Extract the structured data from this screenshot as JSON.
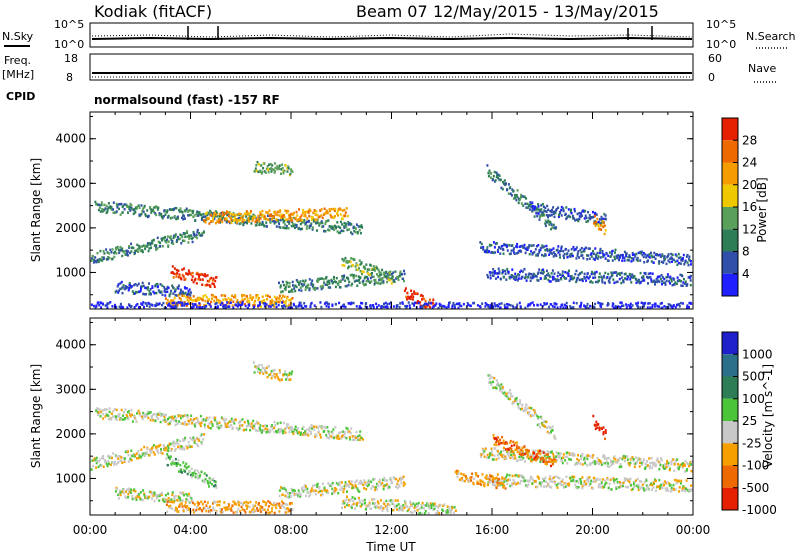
{
  "header": {
    "station": "Kodiak (fitACF)",
    "beam": "Beam 07",
    "dates": "12/May/2015 - 13/May/2015"
  },
  "panels": {
    "nsky": {
      "left_label": "N.Sky",
      "right_label": "N.Search",
      "left_ticks": [
        "10^5",
        "10^0"
      ],
      "right_ticks": [
        "10^5",
        "10^0"
      ]
    },
    "freq": {
      "left_label_1": "Freq.",
      "left_label_2": "[MHz]",
      "right_label": "Nave",
      "left_ticks": [
        "18",
        "8"
      ],
      "right_ticks": [
        "60",
        "0"
      ]
    },
    "cpid": {
      "label": "CPID",
      "text": "normalsound (fast) -157 RF"
    }
  },
  "chart_data": [
    {
      "type": "heatmap",
      "name": "power",
      "ylabel": "Slant Range [km]",
      "xlabel": "",
      "yticks": [
        "1000",
        "2000",
        "3000",
        "4000"
      ],
      "ylim": [
        180,
        4600
      ],
      "xlim": [
        0,
        24
      ],
      "colorbar": {
        "label": "Power [dB]",
        "ticks": [
          "4",
          "8",
          "12",
          "16",
          "20",
          "24",
          "28"
        ],
        "colors": [
          "#1f1fff",
          "#2f4fa8",
          "#2d7d56",
          "#5aa05a",
          "#f0c800",
          "#f59c00",
          "#ee6a00",
          "#e52000"
        ]
      },
      "features": [
        {
          "t0": 0.2,
          "t1": 10.8,
          "r0": 2500,
          "r1": 2000,
          "v": 2
        },
        {
          "t0": 4.5,
          "t1": 10.2,
          "r0": 2250,
          "r1": 2350,
          "v": 5
        },
        {
          "t0": 0.0,
          "t1": 4.5,
          "r0": 1350,
          "r1": 1900,
          "v": 2
        },
        {
          "t0": 3.2,
          "t1": 5.0,
          "r0": 1050,
          "r1": 800,
          "v": 7
        },
        {
          "t0": 1.0,
          "t1": 4.0,
          "r0": 700,
          "r1": 600,
          "v": 1
        },
        {
          "t0": 7.5,
          "t1": 12.5,
          "r0": 700,
          "r1": 950,
          "v": 2
        },
        {
          "t0": 10.0,
          "t1": 12.0,
          "r0": 1300,
          "r1": 900,
          "v": 3
        },
        {
          "t0": 12.5,
          "t1": 13.8,
          "r0": 550,
          "r1": 250,
          "v": 7
        },
        {
          "t0": 3.0,
          "t1": 8.0,
          "r0": 400,
          "r1": 380,
          "v": 5
        },
        {
          "t0": 15.8,
          "t1": 24.0,
          "r0": 1000,
          "r1": 850,
          "v": 1
        },
        {
          "t0": 15.5,
          "t1": 24.0,
          "r0": 1600,
          "r1": 1300,
          "v": 1
        },
        {
          "t0": 15.8,
          "t1": 18.5,
          "r0": 3300,
          "r1": 2000,
          "v": 2
        },
        {
          "t0": 17.5,
          "t1": 20.5,
          "r0": 2500,
          "r1": 2200,
          "v": 1
        },
        {
          "t0": 6.5,
          "t1": 8.0,
          "r0": 3400,
          "r1": 3300,
          "v": 3
        },
        {
          "t0": 20.0,
          "t1": 20.5,
          "r0": 2200,
          "r1": 2000,
          "v": 5
        },
        {
          "t0": 0.0,
          "t1": 24.0,
          "r0": 230,
          "r1": 220,
          "v": 0
        }
      ]
    },
    {
      "type": "heatmap",
      "name": "velocity",
      "ylabel": "Slant Range [km]",
      "xlabel": "Time UT",
      "xticks": [
        "00:00",
        "04:00",
        "08:00",
        "12:00",
        "16:00",
        "20:00",
        "00:00"
      ],
      "yticks": [
        "1000",
        "2000",
        "3000",
        "4000"
      ],
      "ylim": [
        180,
        4600
      ],
      "xlim": [
        0,
        24
      ],
      "colorbar": {
        "label": "Velocity [m s^-1]",
        "ticks": [
          "1000",
          "500",
          "100",
          "25",
          "-25",
          "-100",
          "-500",
          "-1000"
        ],
        "colors": [
          "#1f1fcc",
          "#2c6f8a",
          "#2d7d56",
          "#4cc43a",
          "#c8c8c8",
          "#f5a000",
          "#ee6a00",
          "#e52000"
        ]
      },
      "features": [
        {
          "t0": 0.2,
          "t1": 10.8,
          "r0": 2500,
          "r1": 2000,
          "v": 4
        },
        {
          "t0": 0.0,
          "t1": 4.5,
          "r0": 1350,
          "r1": 1900,
          "v": 4
        },
        {
          "t0": 3.0,
          "t1": 5.0,
          "r0": 1450,
          "r1": 900,
          "v": 3
        },
        {
          "t0": 1.0,
          "t1": 4.0,
          "r0": 700,
          "r1": 600,
          "v": 4
        },
        {
          "t0": 7.5,
          "t1": 12.5,
          "r0": 700,
          "r1": 950,
          "v": 4
        },
        {
          "t0": 10.0,
          "t1": 14.5,
          "r0": 500,
          "r1": 300,
          "v": 4
        },
        {
          "t0": 3.0,
          "t1": 8.0,
          "r0": 400,
          "r1": 380,
          "v": 5
        },
        {
          "t0": 15.8,
          "t1": 24.0,
          "r0": 1000,
          "r1": 850,
          "v": 4
        },
        {
          "t0": 15.5,
          "t1": 24.0,
          "r0": 1600,
          "r1": 1300,
          "v": 4
        },
        {
          "t0": 15.8,
          "t1": 18.5,
          "r0": 3300,
          "r1": 2000,
          "v": 4
        },
        {
          "t0": 16.0,
          "t1": 18.5,
          "r0": 1900,
          "r1": 1400,
          "v": 6
        },
        {
          "t0": 14.5,
          "t1": 16.5,
          "r0": 1100,
          "r1": 900,
          "v": 5
        },
        {
          "t0": 20.0,
          "t1": 20.5,
          "r0": 2300,
          "r1": 2000,
          "v": 7
        },
        {
          "t0": 6.5,
          "t1": 8.0,
          "r0": 3500,
          "r1": 3300,
          "v": 4
        }
      ]
    }
  ]
}
